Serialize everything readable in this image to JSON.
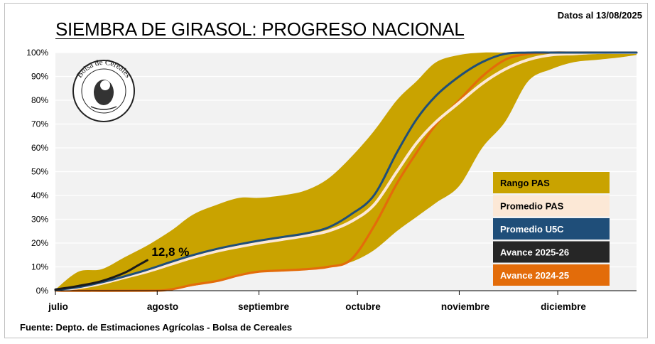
{
  "header": {
    "title": "SIEMBRA DE GIRASOL: PROGRESO NACIONAL",
    "date_note": "Datos al 13/08/2025"
  },
  "footer": {
    "source": "Fuente: Depto. de Estimaciones Agrícolas - Bolsa de Cereales"
  },
  "logo": {
    "text": "Bolsa de Cereales",
    "icon": "bolsa-de-cereales-seal"
  },
  "chart_data": {
    "type": "area",
    "title": "SIEMBRA DE GIRASOL: PROGRESO NACIONAL",
    "xlabel": "",
    "ylabel": "",
    "x_tick_labels": [
      "julio",
      "agosto",
      "septiembre",
      "octubre",
      "noviembre",
      "diciembre"
    ],
    "x_unit": "days since July 1 (month boundaries at 0, 31, 62, 92, 123, 153)",
    "xlim": [
      0,
      177
    ],
    "ylim": [
      0,
      100
    ],
    "y_ticks": [
      0,
      10,
      20,
      30,
      40,
      50,
      60,
      70,
      80,
      90,
      100
    ],
    "y_tick_suffix": "%",
    "grid": "horizontal",
    "legend_position": "right",
    "annotation": {
      "text": "12,8 %",
      "x": 28,
      "y": 12.8
    },
    "series": [
      {
        "name": "Rango PAS",
        "kind": "band",
        "color": "#C9A300",
        "x": [
          0,
          7,
          14,
          21,
          28,
          35,
          42,
          49,
          56,
          62,
          69,
          76,
          83,
          90,
          97,
          104,
          110,
          116,
          123,
          130,
          137,
          144,
          151,
          158,
          165,
          172,
          177
        ],
        "upper": [
          0.5,
          8,
          9,
          14,
          19,
          25,
          32,
          36,
          39,
          39,
          40,
          42,
          47,
          56,
          67,
          80,
          88,
          96,
          99,
          100,
          100,
          100,
          100,
          100,
          100,
          100,
          100
        ],
        "lower": [
          0,
          0,
          0,
          0,
          0,
          0.5,
          2,
          4,
          7,
          8,
          8.5,
          9,
          10,
          12,
          17,
          25,
          31,
          37,
          44,
          60,
          71,
          88,
          93,
          96,
          97,
          98,
          99
        ]
      },
      {
        "name": "Promedio PAS",
        "kind": "line",
        "color": "#FCE8D6",
        "x": [
          0,
          7,
          14,
          21,
          28,
          35,
          42,
          49,
          56,
          62,
          69,
          76,
          83,
          90,
          97,
          104,
          110,
          116,
          123,
          130,
          137,
          144,
          151,
          158,
          165,
          172,
          177
        ],
        "y": [
          0.2,
          1.2,
          3,
          5.5,
          8,
          11,
          14,
          16.5,
          18.5,
          20,
          21.5,
          23,
          25,
          29,
          36,
          50,
          62,
          71,
          79,
          87,
          93,
          97,
          99,
          99.5,
          100,
          100,
          100
        ]
      },
      {
        "name": "Promedio U5C",
        "kind": "line",
        "color": "#1F4E79",
        "x": [
          0,
          7,
          14,
          21,
          28,
          35,
          42,
          49,
          56,
          62,
          69,
          76,
          83,
          90,
          97,
          104,
          110,
          116,
          123,
          130,
          137,
          144,
          151,
          158,
          165,
          172,
          177
        ],
        "y": [
          0.3,
          1.5,
          3.5,
          6,
          8.8,
          12,
          15,
          17.5,
          19.5,
          21,
          22.5,
          24,
          26.5,
          32,
          40,
          58,
          72,
          82,
          90,
          96,
          99.5,
          100,
          100,
          100,
          100,
          100,
          100
        ]
      },
      {
        "name": "Avance 2025-26",
        "kind": "line",
        "color": "#1A1A1A",
        "x": [
          0,
          7,
          14,
          21,
          25,
          28
        ],
        "y": [
          0.5,
          2,
          4,
          7.5,
          10.5,
          12.8
        ]
      },
      {
        "name": "Avance 2024-25",
        "kind": "line",
        "color": "#E36C0A",
        "x": [
          0,
          28,
          35,
          42,
          49,
          56,
          62,
          69,
          76,
          83,
          90,
          97,
          104,
          110,
          116,
          123,
          130,
          137,
          144,
          151,
          158,
          165,
          172,
          177
        ],
        "y": [
          0,
          0,
          0.5,
          2.5,
          4,
          6.5,
          8,
          8.5,
          9,
          10,
          13,
          27,
          45,
          58,
          70,
          80,
          90,
          97,
          99.5,
          100,
          100,
          100,
          100,
          100
        ]
      }
    ]
  }
}
